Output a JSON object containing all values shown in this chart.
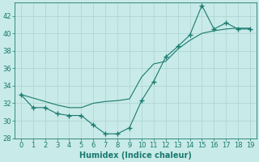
{
  "xlabel": "Humidex (Indice chaleur)",
  "x": [
    0,
    1,
    2,
    3,
    4,
    5,
    6,
    7,
    8,
    9,
    10,
    11,
    12,
    13,
    14,
    15,
    16,
    17,
    18,
    19
  ],
  "line1_y": [
    33,
    31.5,
    31.5,
    30.8,
    30.6,
    30.6,
    29.5,
    28.5,
    28.5,
    29.2,
    32.3,
    34.5,
    37.3,
    38.5,
    39.8,
    43.2,
    40.5,
    41.2,
    40.5,
    40.5
  ],
  "line2_y": [
    33,
    32.6,
    32.2,
    31.8,
    31.5,
    31.5,
    32.0,
    32.2,
    32.3,
    32.5,
    35.0,
    36.5,
    36.8,
    38.2,
    39.2,
    40.0,
    40.3,
    40.5,
    40.6,
    40.6
  ],
  "line_color": "#1a7a6e",
  "bg_color": "#c8eae8",
  "grid_color": "#b0d8d5",
  "ylim": [
    28,
    43.5
  ],
  "yticks": [
    28,
    30,
    32,
    34,
    36,
    38,
    40,
    42
  ],
  "xlim": [
    -0.5,
    19.5
  ],
  "xticks": [
    0,
    1,
    2,
    3,
    4,
    5,
    6,
    7,
    8,
    9,
    10,
    11,
    12,
    13,
    14,
    15,
    16,
    17,
    18,
    19
  ],
  "tick_fontsize": 6,
  "label_fontsize": 7
}
